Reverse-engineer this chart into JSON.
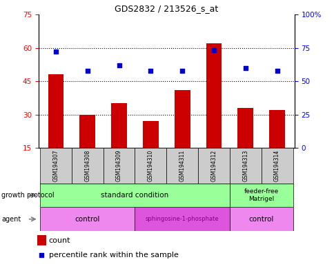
{
  "title": "GDS2832 / 213526_s_at",
  "samples": [
    "GSM194307",
    "GSM194308",
    "GSM194309",
    "GSM194310",
    "GSM194311",
    "GSM194312",
    "GSM194313",
    "GSM194314"
  ],
  "counts": [
    48,
    30,
    35,
    27,
    41,
    62,
    33,
    32
  ],
  "percentile_ranks": [
    72,
    58,
    62,
    58,
    58,
    73,
    60,
    58
  ],
  "ylim_left": [
    15,
    75
  ],
  "ylim_right": [
    0,
    100
  ],
  "yticks_left": [
    15,
    30,
    45,
    60,
    75
  ],
  "yticks_right": [
    0,
    25,
    50,
    75,
    100
  ],
  "bar_color": "#cc0000",
  "dot_color": "#0000cc",
  "bar_width": 0.5,
  "sample_box_color": "#cccccc",
  "growth_standard_color": "#99ff99",
  "growth_feeder_color": "#99ff99",
  "agent_control_color": "#ee88ee",
  "agent_sphingo_color": "#dd55dd",
  "agent_sphingo_text_color": "#880088",
  "legend_count_label": "count",
  "legend_percentile_label": "percentile rank within the sample",
  "grid_color": "black",
  "grid_yticks": [
    30,
    45,
    60
  ]
}
